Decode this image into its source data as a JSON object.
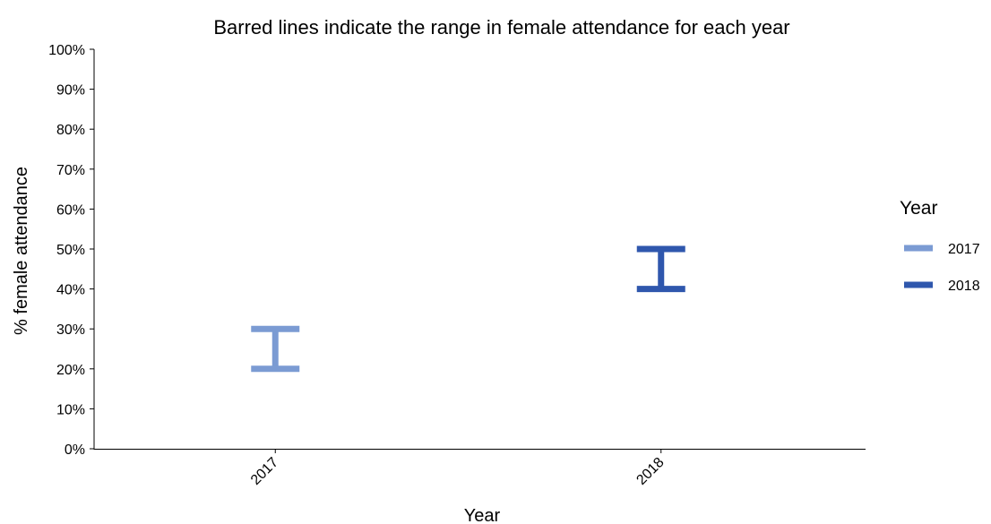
{
  "chart_data": {
    "type": "errorbar",
    "title": "Barred lines indicate the range in female attendance for each year",
    "xlabel": "Year",
    "ylabel": "% female attendance",
    "categories": [
      "2017",
      "2018"
    ],
    "series": [
      {
        "name": "2017",
        "category": "2017",
        "low": 20,
        "high": 30,
        "color": "#7b9bd3"
      },
      {
        "name": "2018",
        "category": "2018",
        "low": 40,
        "high": 50,
        "color": "#2f57ad"
      }
    ],
    "ylim": [
      0,
      100
    ],
    "yticks": [
      0,
      10,
      20,
      30,
      40,
      50,
      60,
      70,
      80,
      90,
      100
    ],
    "ytick_labels": [
      "0%",
      "10%",
      "20%",
      "30%",
      "40%",
      "50%",
      "60%",
      "70%",
      "80%",
      "90%",
      "100%"
    ],
    "legend": {
      "title": "Year",
      "position": "right"
    },
    "grid": false
  }
}
